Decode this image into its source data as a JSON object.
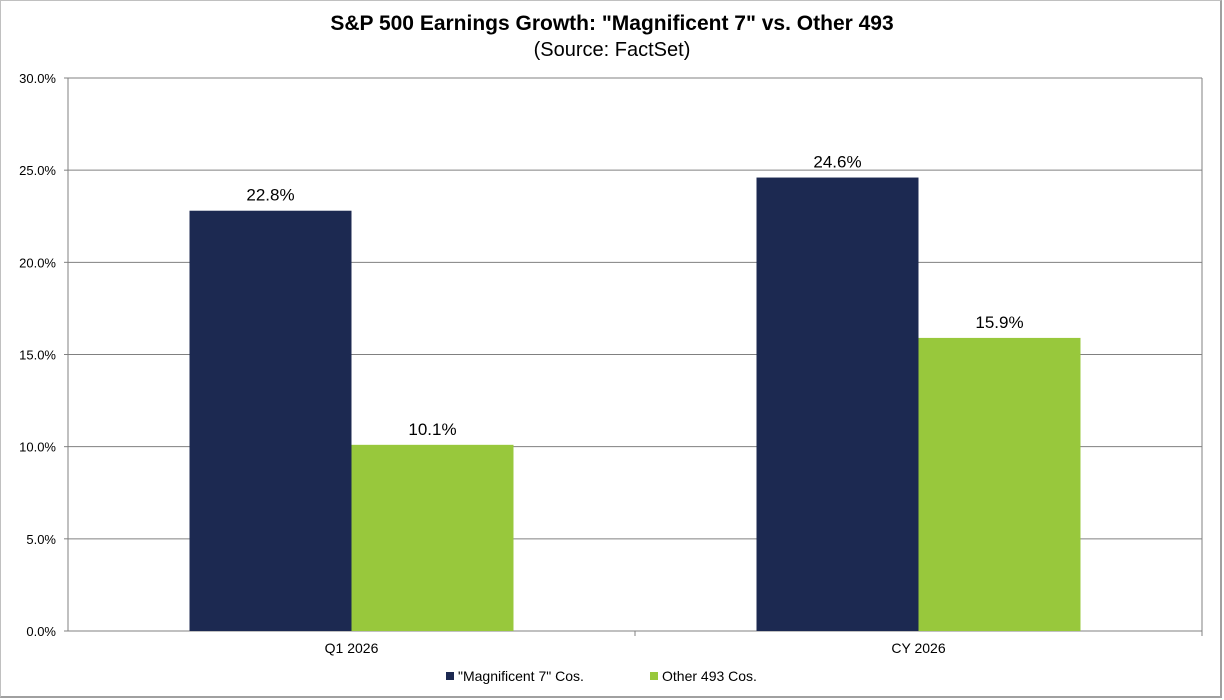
{
  "chart_data": {
    "type": "bar",
    "title": "S&P 500 Earnings Growth: \"Magnificent 7\" vs. Other 493",
    "subtitle": "(Source: FactSet)",
    "categories": [
      "Q1 2026",
      "CY 2026"
    ],
    "series": [
      {
        "name": "\"Magnificent 7\" Cos.",
        "color": "#1c2951",
        "values": [
          22.8,
          24.6
        ],
        "labels": [
          "22.8%",
          "24.6%"
        ]
      },
      {
        "name": "Other 493 Cos.",
        "color": "#98c83c",
        "values": [
          10.1,
          15.9
        ],
        "labels": [
          "10.1%",
          "15.9%"
        ]
      }
    ],
    "ylim": [
      0,
      30
    ],
    "yticks": [
      0,
      5,
      10,
      15,
      20,
      25,
      30
    ],
    "ytick_labels": [
      "0.0%",
      "5.0%",
      "10.0%",
      "15.0%",
      "20.0%",
      "25.0%",
      "30.0%"
    ],
    "xlabel": "",
    "ylabel": "",
    "grid": true,
    "legend": "bottom-center"
  }
}
